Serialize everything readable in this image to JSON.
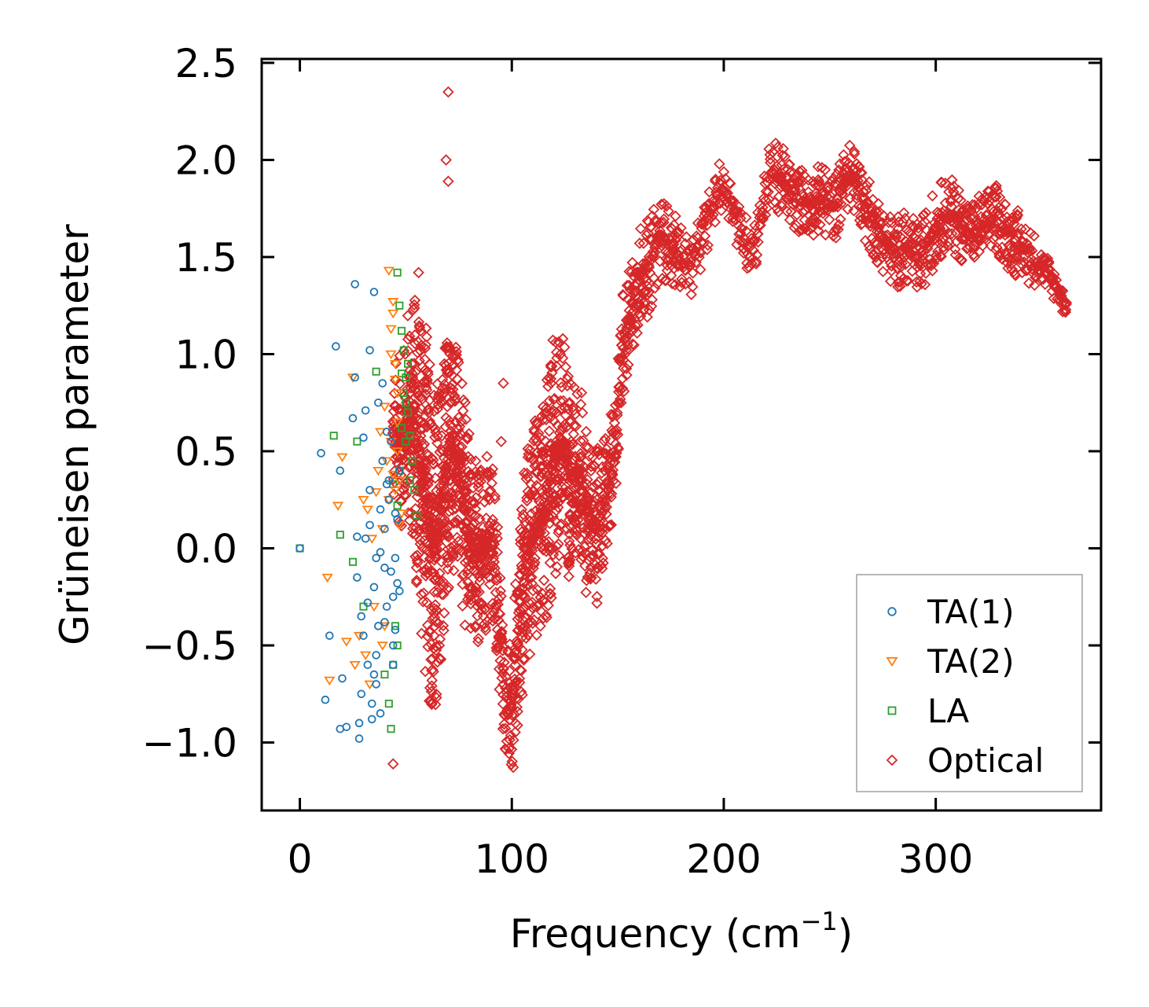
{
  "chart_data": {
    "type": "scatter",
    "xlabel": "Frequency (cm",
    "xlabel_sup": "−1",
    "xlabel_close": ")",
    "ylabel": "Grüneisen parameter",
    "xlim": [
      -18,
      378
    ],
    "ylim": [
      -1.35,
      2.52
    ],
    "xticks": [
      0,
      100,
      200,
      300
    ],
    "xtick_labels": [
      "0",
      "100",
      "200",
      "300"
    ],
    "yticks": [
      -1.0,
      -0.5,
      0.0,
      0.5,
      1.0,
      1.5,
      2.0,
      2.5
    ],
    "ytick_labels": [
      "−1.0",
      "−0.5",
      "0.0",
      "0.5",
      "1.0",
      "1.5",
      "2.0",
      "2.5"
    ],
    "legend_position": "bottom-right",
    "series": [
      {
        "name": "TA(1)",
        "marker": "circle",
        "color": "#1f77b4",
        "x": [
          0,
          10,
          12,
          14,
          17,
          19,
          19,
          20,
          22,
          25,
          26,
          27,
          28,
          29,
          30,
          31,
          32,
          33,
          34,
          35,
          35,
          36,
          37,
          38,
          39,
          40,
          40,
          41,
          42,
          43,
          44,
          45,
          46,
          47,
          27,
          30,
          33,
          36,
          38,
          41,
          44,
          29,
          34,
          39,
          42,
          46,
          31,
          35,
          37,
          43,
          45,
          28,
          32,
          36,
          40,
          44,
          47,
          26,
          33,
          38,
          41,
          45
        ],
        "y": [
          0.0,
          0.49,
          -0.78,
          -0.45,
          1.04,
          -0.93,
          0.4,
          -0.67,
          -0.92,
          0.67,
          1.36,
          0.06,
          -0.98,
          -0.75,
          0.57,
          0.71,
          -0.6,
          1.02,
          -0.88,
          1.32,
          -0.2,
          -0.55,
          -0.4,
          0.2,
          0.85,
          -0.1,
          0.1,
          -0.3,
          0.35,
          0.55,
          -0.25,
          -0.05,
          0.15,
          0.4,
          -0.15,
          -0.45,
          0.3,
          -0.7,
          -0.02,
          0.6,
          -0.5,
          -0.35,
          -0.8,
          0.45,
          0.25,
          -0.18,
          0.05,
          -0.65,
          0.75,
          -0.12,
          0.18,
          -0.9,
          -0.28,
          -0.05,
          -0.38,
          -0.6,
          -0.22,
          0.88,
          0.12,
          -0.85,
          0.33,
          -0.42
        ]
      },
      {
        "name": "TA(2)",
        "marker": "triangle-down",
        "color": "#ff7f0e",
        "x": [
          13,
          14,
          18,
          20,
          22,
          25,
          26,
          28,
          30,
          31,
          32,
          33,
          34,
          35,
          36,
          37,
          38,
          39,
          40,
          41,
          42,
          43,
          44,
          45,
          46,
          47,
          48,
          43,
          44,
          45,
          46,
          42,
          44,
          47,
          40,
          43,
          46,
          39,
          45
        ],
        "y": [
          -0.15,
          -0.68,
          0.22,
          0.47,
          -0.48,
          0.88,
          -0.6,
          -0.45,
          0.25,
          -0.55,
          0.2,
          -0.7,
          0.05,
          -0.3,
          0.29,
          0.4,
          0.6,
          -0.5,
          0.73,
          0.45,
          1.43,
          1.0,
          1.21,
          0.87,
          0.5,
          0.35,
          0.18,
          1.13,
          1.27,
          0.95,
          0.65,
          0.25,
          0.38,
          0.12,
          -0.4,
          0.55,
          0.8,
          0.1,
          0.3
        ]
      },
      {
        "name": "LA",
        "marker": "square",
        "color": "#2ca02c",
        "x": [
          0,
          16,
          19,
          25,
          27,
          30,
          36,
          40,
          42,
          44,
          45,
          46,
          47,
          48,
          49,
          50,
          51,
          52,
          53,
          54,
          55,
          47,
          49,
          51,
          50,
          48,
          46,
          44,
          43,
          46,
          48,
          50,
          52
        ],
        "y": [
          0.0,
          0.58,
          0.07,
          -0.07,
          0.55,
          -0.3,
          0.91,
          -0.65,
          -0.8,
          0.33,
          -0.4,
          1.42,
          1.25,
          1.12,
          1.02,
          0.88,
          0.7,
          0.58,
          0.45,
          0.3,
          0.17,
          0.4,
          0.8,
          0.95,
          0.75,
          0.62,
          0.22,
          -0.6,
          -0.93,
          -0.5,
          0.9,
          0.55,
          0.35
        ]
      },
      {
        "name": "Optical",
        "marker": "diamond",
        "color": "#d62728",
        "y_band_cross_section": "center ± half-width at each frequency",
        "x_range": [
          44,
          362
        ],
        "center_curve": {
          "x": [
            48,
            52,
            56,
            60,
            64,
            68,
            72,
            76,
            80,
            85,
            90,
            94,
            97,
            100,
            104,
            108,
            112,
            116,
            120,
            124,
            128,
            132,
            136,
            140,
            144,
            148,
            152,
            156,
            160,
            165,
            170,
            175,
            180,
            185,
            198,
            203,
            208,
            212,
            216,
            222,
            228,
            234,
            240,
            246,
            252,
            258,
            263,
            268,
            274,
            280,
            286,
            292,
            298,
            304,
            310,
            316,
            322,
            328,
            334,
            340,
            346,
            352,
            357,
            361
          ],
          "y": [
            0.55,
            0.7,
            0.5,
            0.2,
            -0.05,
            0.35,
            0.55,
            0.3,
            0.05,
            -0.05,
            0.1,
            -0.3,
            -0.85,
            -0.8,
            -0.3,
            0.0,
            0.1,
            0.2,
            0.45,
            0.55,
            0.35,
            0.4,
            0.15,
            0.1,
            0.25,
            0.4,
            1.05,
            1.2,
            1.4,
            1.45,
            1.62,
            1.55,
            1.5,
            1.45,
            1.86,
            1.82,
            1.62,
            1.55,
            1.62,
            1.95,
            1.88,
            1.8,
            1.78,
            1.8,
            1.75,
            1.92,
            1.88,
            1.72,
            1.62,
            1.52,
            1.55,
            1.48,
            1.62,
            1.72,
            1.7,
            1.62,
            1.65,
            1.7,
            1.62,
            1.55,
            1.5,
            1.42,
            1.35,
            1.25
          ]
        },
        "half_width": {
          "x": [
            48,
            60,
            75,
            90,
            97,
            105,
            120,
            135,
            150,
            165,
            185,
            200,
            225,
            260,
            300,
            340,
            362
          ],
          "y": [
            0.45,
            0.95,
            0.6,
            0.45,
            0.3,
            0.55,
            0.65,
            0.45,
            0.3,
            0.25,
            0.15,
            0.12,
            0.18,
            0.18,
            0.2,
            0.18,
            0.06
          ]
        },
        "outliers": {
          "x": [
            70,
            69,
            70,
            44,
            96,
            56,
            95
          ],
          "y": [
            2.35,
            2.0,
            1.89,
            -1.11,
            0.85,
            1.42,
            0.55
          ]
        }
      }
    ]
  }
}
